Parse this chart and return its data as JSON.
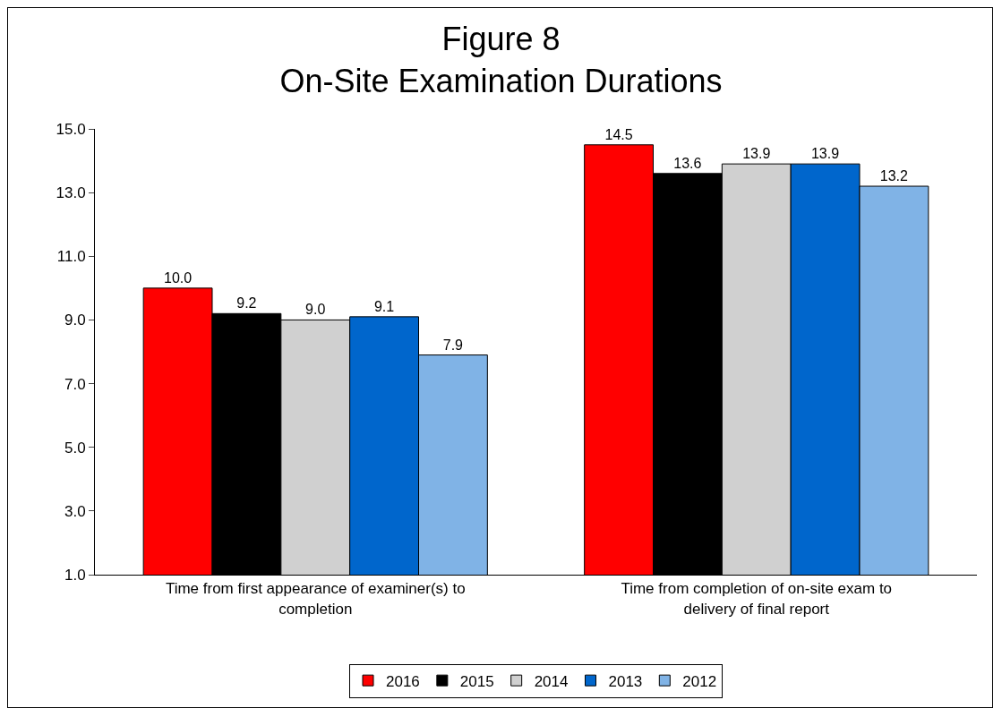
{
  "chart_data": {
    "type": "bar",
    "title": "Figure 8",
    "subtitle": "On-Site Examination Durations",
    "categories": [
      "Time from first appearance of examiner(s) to completion",
      "Time from completion of on-site exam to delivery of final report"
    ],
    "series": [
      {
        "name": "2016",
        "color": "#ff0000",
        "values": [
          10.0,
          14.5
        ],
        "value_labels": [
          "10.0",
          "14.5"
        ]
      },
      {
        "name": "2015",
        "color": "#000000",
        "values": [
          9.2,
          13.6
        ],
        "value_labels": [
          "9.2",
          "13.6"
        ]
      },
      {
        "name": "2014",
        "color": "#d0d0d0",
        "values": [
          9.0,
          13.9
        ],
        "value_labels": [
          "9.0",
          "13.9"
        ]
      },
      {
        "name": "2013",
        "color": "#0066cc",
        "values": [
          9.1,
          13.9
        ],
        "value_labels": [
          "9.1",
          "13.9"
        ]
      },
      {
        "name": "2012",
        "color": "#80b3e6",
        "values": [
          7.9,
          13.2
        ],
        "value_labels": [
          "7.9",
          "13.2"
        ]
      }
    ],
    "ylim": [
      1.0,
      15.0
    ],
    "yticks": [
      {
        "value": 1,
        "label": "1.0"
      },
      {
        "value": 3,
        "label": "3.0"
      },
      {
        "value": 5,
        "label": "5.0"
      },
      {
        "value": 7,
        "label": "7.0"
      },
      {
        "value": 9,
        "label": "9.0"
      },
      {
        "value": 11,
        "label": "11.0"
      },
      {
        "value": 13,
        "label": "13.0"
      },
      {
        "value": 15,
        "label": "15.0"
      }
    ],
    "grid": false,
    "legend": "bottom"
  }
}
